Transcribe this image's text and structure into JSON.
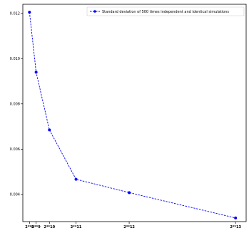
{
  "chart_data": {
    "type": "line",
    "title": "",
    "xlabel": "",
    "ylabel": "",
    "x": [
      256,
      512,
      1024,
      2048,
      4096,
      8192
    ],
    "x_tick_values": [
      256,
      512,
      1024,
      2048,
      4096,
      8192
    ],
    "x_tick_labels": [
      "2**8",
      "2**9",
      "2**10",
      "2**11",
      "2**12",
      "2**13"
    ],
    "xlim": [
      0,
      8600
    ],
    "ylim": [
      0.0028,
      0.0124
    ],
    "y_ticks": [
      0.004,
      0.006,
      0.008,
      0.01,
      0.012
    ],
    "y_tick_labels": [
      "0.004",
      "0.006",
      "0.008",
      "0.010",
      "0.012"
    ],
    "series": [
      {
        "name": "Standard deviation of 500 times independent and identical simulations",
        "values": [
          0.01205,
          0.0094,
          0.00685,
          0.00467,
          0.00408,
          0.00296
        ],
        "color": "#0000ff",
        "line_style": "dashed",
        "marker": "circle"
      }
    ],
    "legend_position": "top-right",
    "grid": false
  }
}
